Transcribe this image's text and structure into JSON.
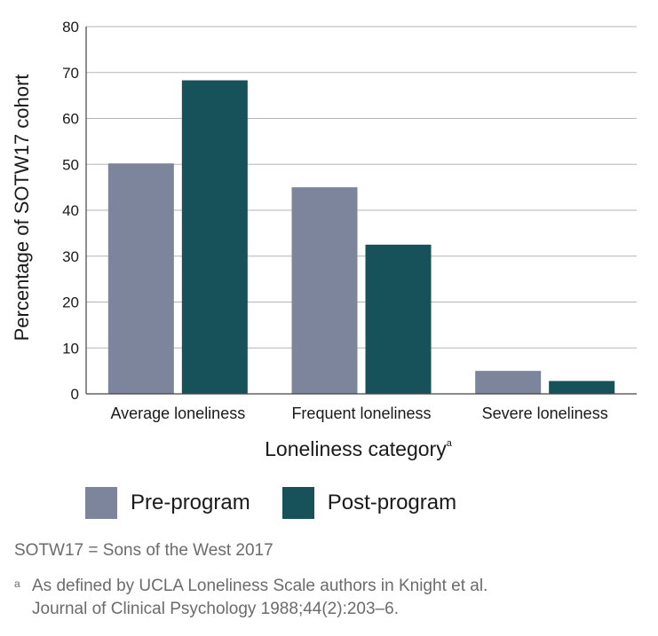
{
  "chart_data": {
    "type": "bar",
    "categories": [
      "Average loneliness",
      "Frequent loneliness",
      "Severe loneliness"
    ],
    "series": [
      {
        "name": "Pre-program",
        "color": "#7c859b",
        "values": [
          50.2,
          45,
          5
        ]
      },
      {
        "name": "Post-program",
        "color": "#17525a",
        "values": [
          68.3,
          32.5,
          2.8
        ]
      }
    ],
    "ylabel": "Percentage of SOTW17 cohort",
    "xlabel": "Loneliness category",
    "xlabel_superscript": "a",
    "ylim": [
      0,
      80
    ],
    "yticks": [
      0,
      10,
      20,
      30,
      40,
      50,
      60,
      70,
      80
    ],
    "grid": "horizontal",
    "legend_position": "bottom-left"
  },
  "legend": {
    "items": [
      {
        "label": "Pre-program",
        "color": "#7c859b"
      },
      {
        "label": "Post-program",
        "color": "#17525a"
      }
    ]
  },
  "notes": {
    "abbreviation": "SOTW17 = Sons of the West 2017",
    "footnote_marker": "a",
    "footnote_line1": "As defined by UCLA Loneliness Scale authors in Knight et al.",
    "footnote_line2": "Journal of Clinical Psychology 1988;44(2):203–6."
  }
}
